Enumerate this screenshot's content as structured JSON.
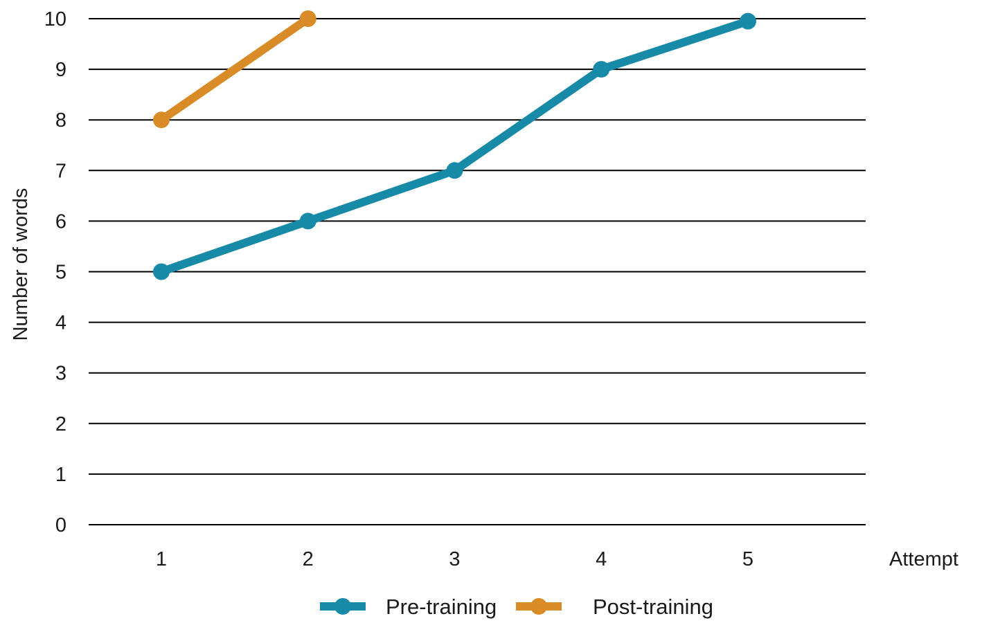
{
  "chart_data": {
    "type": "line",
    "title": "",
    "xlabel": "Attempt",
    "ylabel": "Number of words",
    "x": [
      1,
      2,
      3,
      4,
      5
    ],
    "ylim": [
      0,
      10
    ],
    "yticks": [
      0,
      1,
      2,
      3,
      4,
      5,
      6,
      7,
      8,
      9,
      10
    ],
    "grid": "horizontal",
    "legend_position": "bottom-center",
    "series": [
      {
        "name": "Pre-training",
        "color": "#168aa6",
        "points": [
          [
            1,
            5
          ],
          [
            2,
            6
          ],
          [
            3,
            7
          ],
          [
            4,
            9
          ],
          [
            5,
            9.95
          ]
        ]
      },
      {
        "name": "Post-training",
        "color": "#d98b27",
        "points": [
          [
            1,
            8
          ],
          [
            2,
            10
          ]
        ]
      }
    ]
  }
}
